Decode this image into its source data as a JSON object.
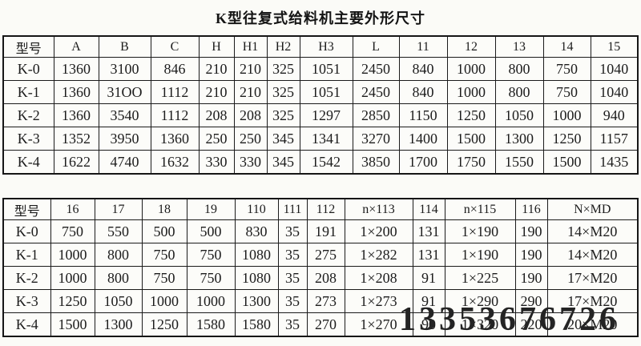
{
  "page": {
    "title": "K型往复式给料机主要外形尺寸",
    "watermark": "13353676726"
  },
  "table1": {
    "headers": [
      "型号",
      "A",
      "B",
      "C",
      "H",
      "H1",
      "H2",
      "H3",
      "L",
      "11",
      "12",
      "13",
      "14",
      "15"
    ],
    "rows": [
      [
        "K-0",
        "1360",
        "3100",
        "846",
        "210",
        "210",
        "325",
        "1051",
        "2450",
        "840",
        "1000",
        "800",
        "750",
        "1040"
      ],
      [
        "K-1",
        "1360",
        "31OO",
        "1112",
        "210",
        "210",
        "325",
        "1051",
        "2450",
        "840",
        "1000",
        "800",
        "750",
        "1040"
      ],
      [
        "K-2",
        "1360",
        "3540",
        "1112",
        "208",
        "208",
        "325",
        "1297",
        "2850",
        "1150",
        "1250",
        "1050",
        "1000",
        "940"
      ],
      [
        "K-3",
        "1352",
        "3950",
        "1360",
        "250",
        "250",
        "345",
        "1341",
        "3270",
        "1400",
        "1500",
        "1300",
        "1250",
        "1157"
      ],
      [
        "K-4",
        "1622",
        "4740",
        "1632",
        "330",
        "330",
        "345",
        "1542",
        "3850",
        "1700",
        "1750",
        "1550",
        "1500",
        "1435"
      ]
    ]
  },
  "table2": {
    "headers": [
      "型号",
      "16",
      "17",
      "18",
      "19",
      "110",
      "111",
      "112",
      "n×113",
      "114",
      "n×115",
      "116",
      "N×MD"
    ],
    "rows": [
      [
        "K-0",
        "750",
        "550",
        "500",
        "500",
        "830",
        "35",
        "191",
        "1×200",
        "131",
        "1×190",
        "190",
        "14×M20"
      ],
      [
        "K-1",
        "1000",
        "800",
        "750",
        "750",
        "1080",
        "35",
        "275",
        "1×282",
        "131",
        "1×190",
        "190",
        "14×M20"
      ],
      [
        "K-2",
        "1000",
        "800",
        "750",
        "750",
        "1080",
        "35",
        "208",
        "1×208",
        "91",
        "1×225",
        "190",
        "17×M20"
      ],
      [
        "K-3",
        "1250",
        "1050",
        "1000",
        "1000",
        "1300",
        "35",
        "273",
        "1×273",
        "91",
        "1×290",
        "290",
        "17×M20"
      ],
      [
        "K-4",
        "1500",
        "1300",
        "1250",
        "1580",
        "1580",
        "35",
        "270",
        "1×270",
        "90",
        "1×320",
        "220",
        "20×M20"
      ]
    ]
  }
}
